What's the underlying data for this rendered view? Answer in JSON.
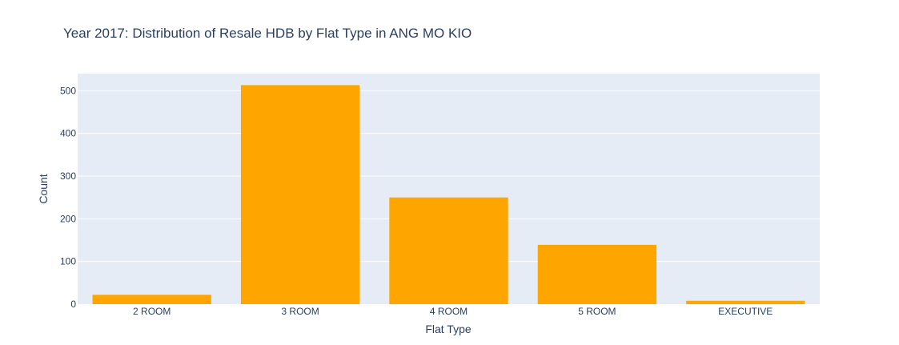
{
  "chart_data": {
    "type": "bar",
    "title": "Year 2017: Distribution of Resale HDB by Flat Type in ANG MO KIO",
    "xlabel": "Flat Type",
    "ylabel": "Count",
    "categories": [
      "2 ROOM",
      "3 ROOM",
      "4 ROOM",
      "5 ROOM",
      "EXECUTIVE"
    ],
    "values": [
      22,
      513,
      250,
      139,
      8
    ],
    "ylim": [
      0,
      540
    ],
    "yticks": [
      0,
      100,
      200,
      300,
      400,
      500
    ],
    "grid": true,
    "bar_color": "#FFA500",
    "plot_bg": "#E5ECF6",
    "gridline_color": "#FFFFFF",
    "text_color": "#2A3F5F"
  }
}
